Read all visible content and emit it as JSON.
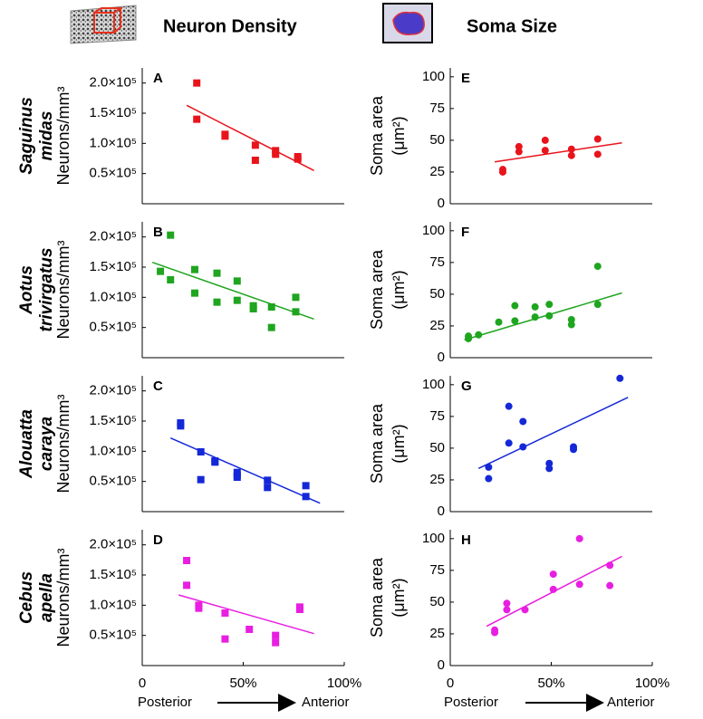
{
  "header": {
    "titles": [
      "Neuron Density",
      "Soma Size"
    ]
  },
  "rows": [
    [
      "Saguinus",
      "midas"
    ],
    [
      "Aotus",
      "trivirgatus"
    ],
    [
      "Alouatta",
      "caraya"
    ],
    [
      "Cebus",
      "apella"
    ]
  ],
  "x_axis": [
    {
      "left": "Posterior",
      "right": "Anterior"
    },
    {
      "left": "Posterior",
      "right": "Anterior"
    }
  ],
  "chart_data": [
    {
      "type": "scatter",
      "panel": "A",
      "ylabel": [
        "Neurons/mm³"
      ],
      "marker": "square",
      "color": "#e8141c",
      "x": [
        27,
        27,
        41,
        41,
        56,
        56,
        66,
        66,
        77,
        77
      ],
      "values": [
        200000,
        140000,
        115000,
        112000,
        97000,
        72000,
        88000,
        82000,
        78000,
        74000
      ],
      "fit": {
        "x": [
          22,
          85
        ],
        "values": [
          163000,
          55000
        ]
      },
      "xlim": [
        0,
        100
      ],
      "ylim": [
        0,
        225000
      ],
      "yticks": [
        {
          "value": 50000,
          "label": "0.5×10⁵"
        },
        {
          "value": 100000,
          "label": "1.0×10⁵"
        },
        {
          "value": 150000,
          "label": "1.5×10⁵"
        },
        {
          "value": 200000,
          "label": "2.0×10⁵"
        }
      ]
    },
    {
      "type": "scatter",
      "panel": "B",
      "ylabel": [
        "Neurons/mm³"
      ],
      "marker": "square",
      "color": "#1fa51f",
      "x": [
        9,
        14,
        14,
        26,
        26,
        37,
        37,
        47,
        47,
        55,
        55,
        64,
        64,
        76,
        76
      ],
      "values": [
        143000,
        203000,
        129000,
        146000,
        107000,
        140000,
        92000,
        127000,
        95000,
        86000,
        81000,
        84000,
        50000,
        100000,
        76000
      ],
      "fit": {
        "x": [
          5,
          85
        ],
        "values": [
          158000,
          64000
        ]
      },
      "xlim": [
        0,
        100
      ],
      "ylim": [
        0,
        225000
      ],
      "yticks": [
        {
          "value": 50000,
          "label": "0.5×10⁵"
        },
        {
          "value": 100000,
          "label": "1.0×10⁵"
        },
        {
          "value": 150000,
          "label": "1.5×10⁵"
        },
        {
          "value": 200000,
          "label": "2.0×10⁵"
        }
      ]
    },
    {
      "type": "scatter",
      "panel": "C",
      "ylabel": [
        "Neurons/mm³"
      ],
      "marker": "square",
      "color": "#1428d8",
      "x": [
        19,
        19,
        29,
        29,
        36,
        36,
        47,
        47,
        47,
        62,
        62,
        81,
        81
      ],
      "values": [
        147000,
        142000,
        99000,
        53000,
        84000,
        82000,
        65000,
        60000,
        57000,
        52000,
        40000,
        43000,
        25000
      ],
      "fit": {
        "x": [
          14,
          88
        ],
        "values": [
          122000,
          14000
        ]
      },
      "xlim": [
        0,
        100
      ],
      "ylim": [
        0,
        225000
      ],
      "yticks": [
        {
          "value": 50000,
          "label": "0.5×10⁵"
        },
        {
          "value": 100000,
          "label": "1.0×10⁵"
        },
        {
          "value": 150000,
          "label": "1.5×10⁵"
        },
        {
          "value": 200000,
          "label": "2.0×10⁵"
        }
      ]
    },
    {
      "type": "scatter",
      "panel": "D",
      "ylabel": [
        "Neurons/mm³"
      ],
      "marker": "square",
      "color": "#e81ee0",
      "x": [
        22,
        22,
        28,
        28,
        41,
        41,
        53,
        66,
        66,
        78,
        78
      ],
      "values": [
        174000,
        133000,
        100000,
        95000,
        87000,
        44000,
        60000,
        50000,
        38000,
        97000,
        93000
      ],
      "fit": {
        "x": [
          18,
          85
        ],
        "values": [
          117000,
          53000
        ]
      },
      "xlim": [
        0,
        100
      ],
      "ylim": [
        0,
        225000
      ],
      "xticks": [
        0,
        {
          "value": 50,
          "label": "50%"
        },
        {
          "value": 100,
          "label": "100%"
        }
      ],
      "yticks": [
        {
          "value": 50000,
          "label": "0.5×10⁵"
        },
        {
          "value": 100000,
          "label": "1.0×10⁵"
        },
        {
          "value": 150000,
          "label": "1.5×10⁵"
        },
        {
          "value": 200000,
          "label": "2.0×10⁵"
        }
      ]
    },
    {
      "type": "scatter",
      "panel": "E",
      "ylabel": [
        "Soma area",
        "(μm²)"
      ],
      "marker": "circle",
      "color": "#e8141c",
      "x": [
        26,
        26,
        34,
        34,
        47,
        47,
        60,
        60,
        73,
        73
      ],
      "values": [
        27,
        25,
        45,
        41,
        50,
        42,
        43,
        38,
        51,
        39
      ],
      "fit": {
        "x": [
          22,
          85
        ],
        "values": [
          33,
          48
        ]
      },
      "xlim": [
        0,
        100
      ],
      "ylim": [
        0,
        107
      ],
      "yticks": [
        0,
        25,
        50,
        75,
        100
      ]
    },
    {
      "type": "scatter",
      "panel": "F",
      "ylabel": [
        "Soma area",
        "(μm²)"
      ],
      "marker": "circle",
      "color": "#1fa51f",
      "x": [
        9,
        9,
        14,
        24,
        32,
        32,
        42,
        42,
        49,
        49,
        60,
        60,
        73,
        73
      ],
      "values": [
        17,
        15,
        18,
        28,
        41,
        29,
        40,
        32,
        42,
        33,
        30,
        26,
        72,
        42
      ],
      "fit": {
        "x": [
          7,
          85
        ],
        "values": [
          14,
          51
        ]
      },
      "xlim": [
        0,
        100
      ],
      "ylim": [
        0,
        107
      ],
      "yticks": [
        0,
        25,
        50,
        75,
        100
      ]
    },
    {
      "type": "scatter",
      "panel": "G",
      "ylabel": [
        "Soma area",
        "(μm²)"
      ],
      "marker": "circle",
      "color": "#1428d8",
      "x": [
        19,
        19,
        29,
        29,
        36,
        36,
        49,
        49,
        61,
        61,
        84
      ],
      "values": [
        35,
        26,
        83,
        54,
        71,
        51,
        38,
        34,
        51,
        49,
        105
      ],
      "fit": {
        "x": [
          14,
          88
        ],
        "values": [
          34,
          90
        ]
      },
      "xlim": [
        0,
        100
      ],
      "ylim": [
        0,
        107
      ],
      "yticks": [
        0,
        25,
        50,
        75,
        100
      ]
    },
    {
      "type": "scatter",
      "panel": "H",
      "ylabel": [
        "Soma area",
        "(μm²)"
      ],
      "marker": "circle",
      "color": "#e81ee0",
      "x": [
        22,
        22,
        28,
        28,
        37,
        51,
        51,
        64,
        64,
        79,
        79
      ],
      "values": [
        28,
        26,
        49,
        44,
        44,
        72,
        60,
        100,
        64,
        79,
        63
      ],
      "fit": {
        "x": [
          18,
          85
        ],
        "values": [
          31,
          86
        ]
      },
      "xlim": [
        0,
        100
      ],
      "ylim": [
        0,
        107
      ],
      "xticks": [
        0,
        {
          "value": 50,
          "label": "50%"
        },
        {
          "value": 100,
          "label": "100%"
        }
      ],
      "yticks": [
        0,
        25,
        50,
        75,
        100
      ]
    }
  ]
}
